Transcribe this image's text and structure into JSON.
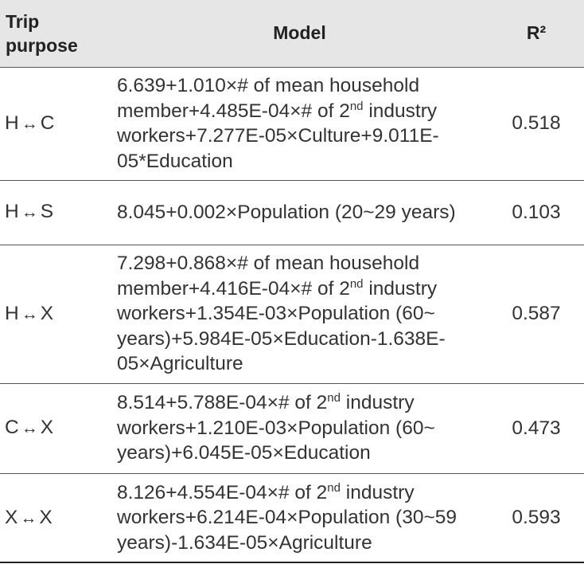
{
  "header": {
    "trip_purpose": "Trip purpose",
    "model": "Model",
    "r2": "R²"
  },
  "arrow_glyph": "↔",
  "rows": [
    {
      "from": "H",
      "to": "C",
      "model": [
        "6.639+1.010×# of mean household member+4.485E-04×# of 2",
        "nd",
        " industry workers+7.277E-05×Culture+9.011E-05*Education"
      ],
      "r2": "0.518"
    },
    {
      "from": "H",
      "to": "S",
      "model": [
        "8.045+0.002×Population (20~29 years)"
      ],
      "r2": "0.103"
    },
    {
      "from": "H",
      "to": "X",
      "model": [
        "7.298+0.868×# of mean household member+4.416E-04×# of 2",
        "nd",
        " industry workers+1.354E-03×Population (60~ years)+5.984E-05×Education-1.638E-05×Agriculture"
      ],
      "r2": "0.587"
    },
    {
      "from": "C",
      "to": "X",
      "model": [
        "8.514+5.788E-04×# of 2",
        "nd",
        " industry workers+1.210E-03×Population (60~ years)+6.045E-05×Education"
      ],
      "r2": "0.473"
    },
    {
      "from": "X",
      "to": "X",
      "model": [
        "8.126+4.554E-04×# of 2",
        "nd",
        " industry workers+6.214E-04×Population (30~59 years)-1.634E-05×Agriculture"
      ],
      "r2": "0.593"
    }
  ]
}
